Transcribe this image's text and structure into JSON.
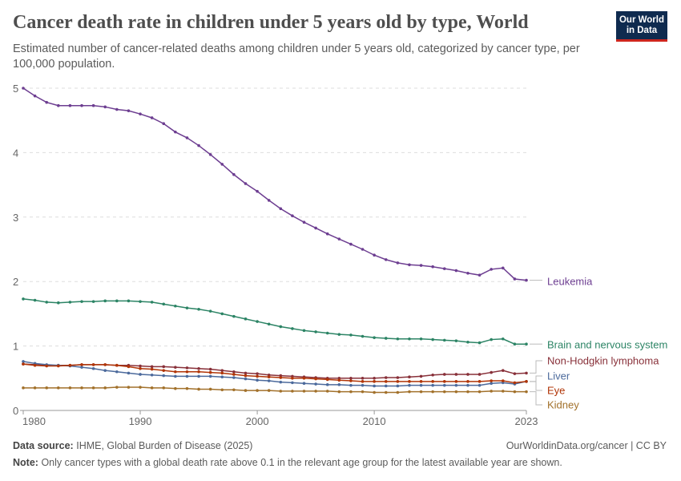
{
  "header": {
    "title": "Cancer death rate in children under 5 years old by type, World",
    "subtitle": "Estimated number of cancer-related deaths among children under 5 years old, categorized by cancer type, per 100,000 population.",
    "logo": "Our World in Data"
  },
  "chart_data": {
    "type": "line",
    "title": "Cancer death rate in children under 5 years old by type, World",
    "xlim": [
      1980,
      2023
    ],
    "ylim": [
      0,
      5
    ],
    "x_ticks": [
      "1980",
      "1990",
      "2000",
      "2010",
      "2023"
    ],
    "y_ticks": [
      "0",
      "1",
      "2",
      "3",
      "4",
      "5"
    ],
    "grid": "horizontal dashed",
    "legend": "right (line-end labels)",
    "x": [
      1980,
      1981,
      1982,
      1983,
      1984,
      1985,
      1986,
      1987,
      1988,
      1989,
      1990,
      1991,
      1992,
      1993,
      1994,
      1995,
      1996,
      1997,
      1998,
      1999,
      2000,
      2001,
      2002,
      2003,
      2004,
      2005,
      2006,
      2007,
      2008,
      2009,
      2010,
      2011,
      2012,
      2013,
      2014,
      2015,
      2016,
      2017,
      2018,
      2019,
      2020,
      2021,
      2022,
      2023
    ],
    "series": [
      {
        "name": "Leukemia",
        "color": "#6d3e91",
        "values": [
          5.0,
          4.88,
          4.78,
          4.73,
          4.73,
          4.73,
          4.73,
          4.71,
          4.67,
          4.65,
          4.6,
          4.54,
          4.45,
          4.32,
          4.23,
          4.11,
          3.97,
          3.82,
          3.66,
          3.52,
          3.4,
          3.26,
          3.13,
          3.02,
          2.92,
          2.83,
          2.74,
          2.66,
          2.58,
          2.5,
          2.41,
          2.34,
          2.29,
          2.26,
          2.25,
          2.23,
          2.2,
          2.17,
          2.13,
          2.1,
          2.19,
          2.21,
          2.04,
          2.02
        ]
      },
      {
        "name": "Brain and nervous system",
        "color": "#2c8465",
        "values": [
          1.73,
          1.71,
          1.68,
          1.67,
          1.68,
          1.69,
          1.69,
          1.7,
          1.7,
          1.7,
          1.69,
          1.68,
          1.65,
          1.62,
          1.59,
          1.57,
          1.54,
          1.5,
          1.46,
          1.42,
          1.38,
          1.34,
          1.3,
          1.27,
          1.24,
          1.22,
          1.2,
          1.18,
          1.17,
          1.15,
          1.13,
          1.12,
          1.11,
          1.11,
          1.11,
          1.1,
          1.09,
          1.08,
          1.06,
          1.05,
          1.1,
          1.11,
          1.03,
          1.03
        ]
      },
      {
        "name": "Non-Hodgkin lymphoma",
        "color": "#883039",
        "values": [
          0.72,
          0.71,
          0.7,
          0.7,
          0.7,
          0.71,
          0.71,
          0.71,
          0.7,
          0.7,
          0.69,
          0.68,
          0.68,
          0.67,
          0.66,
          0.65,
          0.64,
          0.62,
          0.6,
          0.58,
          0.57,
          0.55,
          0.54,
          0.53,
          0.52,
          0.51,
          0.5,
          0.5,
          0.5,
          0.5,
          0.5,
          0.51,
          0.51,
          0.52,
          0.53,
          0.55,
          0.56,
          0.56,
          0.56,
          0.56,
          0.59,
          0.62,
          0.57,
          0.58
        ]
      },
      {
        "name": "Liver",
        "color": "#4c6a9c",
        "values": [
          0.76,
          0.73,
          0.71,
          0.7,
          0.69,
          0.67,
          0.65,
          0.62,
          0.6,
          0.58,
          0.56,
          0.55,
          0.54,
          0.53,
          0.53,
          0.53,
          0.53,
          0.52,
          0.51,
          0.49,
          0.47,
          0.46,
          0.44,
          0.43,
          0.42,
          0.41,
          0.4,
          0.4,
          0.39,
          0.39,
          0.38,
          0.38,
          0.38,
          0.39,
          0.39,
          0.39,
          0.39,
          0.39,
          0.39,
          0.39,
          0.42,
          0.43,
          0.41,
          0.45
        ]
      },
      {
        "name": "Eye",
        "color": "#b13507",
        "values": [
          0.72,
          0.7,
          0.69,
          0.69,
          0.7,
          0.71,
          0.71,
          0.71,
          0.7,
          0.68,
          0.65,
          0.64,
          0.62,
          0.6,
          0.6,
          0.6,
          0.59,
          0.58,
          0.56,
          0.54,
          0.53,
          0.52,
          0.51,
          0.5,
          0.5,
          0.49,
          0.48,
          0.47,
          0.46,
          0.45,
          0.45,
          0.45,
          0.45,
          0.45,
          0.45,
          0.45,
          0.45,
          0.45,
          0.45,
          0.45,
          0.46,
          0.46,
          0.43,
          0.45
        ]
      },
      {
        "name": "Kidney",
        "color": "#a2712b",
        "values": [
          0.35,
          0.35,
          0.35,
          0.35,
          0.35,
          0.35,
          0.35,
          0.35,
          0.36,
          0.36,
          0.36,
          0.35,
          0.35,
          0.34,
          0.34,
          0.33,
          0.33,
          0.32,
          0.32,
          0.31,
          0.31,
          0.31,
          0.3,
          0.3,
          0.3,
          0.3,
          0.3,
          0.29,
          0.29,
          0.29,
          0.28,
          0.28,
          0.28,
          0.29,
          0.29,
          0.29,
          0.29,
          0.29,
          0.29,
          0.29,
          0.3,
          0.3,
          0.29,
          0.29
        ]
      }
    ]
  },
  "footer": {
    "source_label": "Data source:",
    "source": "IHME, Global Burden of Disease (2025)",
    "url": "OurWorldinData.org/cancer | CC BY",
    "note_label": "Note:",
    "note": "Only cancer types with a global death rate above 0.1 in the relevant age group for the latest available year are shown."
  }
}
